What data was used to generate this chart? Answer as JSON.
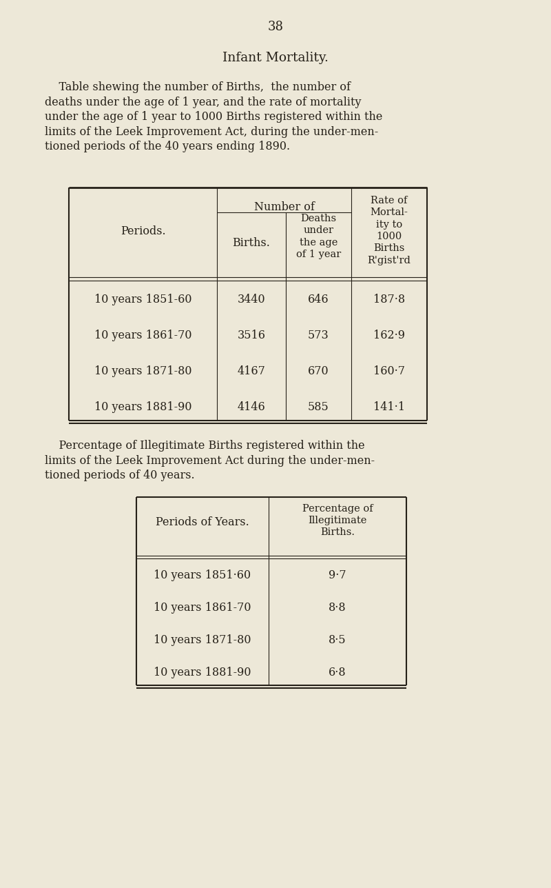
{
  "bg_color": "#ede8d8",
  "page_number": "38",
  "title": "Infant Mortality.",
  "para1_lines": [
    "    Table shewing the number of Births,  the number of",
    "deaths under the age of 1 year, and the rate of mortality",
    "under the age of 1 year to 1000 Births registered within the",
    "limits of the Leek Improvement Act, during the under-men-",
    "tioned periods of the 40 years ending 1890."
  ],
  "table1_rows": [
    [
      "10 years 1851-60",
      "3440",
      "646",
      "187·8"
    ],
    [
      "10 years 1861-70",
      "3516",
      "573",
      "162·9"
    ],
    [
      "10 years 1871-80",
      "4167",
      "670",
      "160·7"
    ],
    [
      "10 years 1881-90",
      "4146",
      "585",
      "141·1"
    ]
  ],
  "para2_lines": [
    "    Percentage of Illegitimate Births registered within the",
    "limits of the Leek Improvement Act during the under-men-",
    "tioned periods of 40 years."
  ],
  "table2_rows": [
    [
      "10 years 1851·60",
      "9·7"
    ],
    [
      "10 years 1861-70",
      "8·8"
    ],
    [
      "10 years 1871-80",
      "8·5"
    ],
    [
      "10 years 1881-90",
      "6·8"
    ]
  ],
  "font_color": "#252018",
  "line_color": "#252018"
}
